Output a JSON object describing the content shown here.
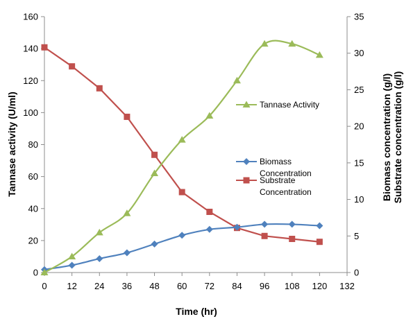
{
  "chart_data": {
    "type": "line",
    "title": "",
    "xlabel": "Time (hr)",
    "ylabel_left": "Tannase activity (U/ml)",
    "ylabel_right": [
      "Biomass concentration (g/l)",
      "Substrate concentration (g/l)"
    ],
    "x_ticks": [
      0,
      12,
      24,
      36,
      48,
      60,
      72,
      84,
      96,
      108,
      120,
      132
    ],
    "xlim": [
      0,
      132
    ],
    "ylim_left": [
      0,
      160
    ],
    "y_ticks_left": [
      0,
      20,
      40,
      60,
      80,
      100,
      120,
      140,
      160
    ],
    "ylim_right": [
      0,
      35
    ],
    "y_ticks_right": [
      0,
      5,
      10,
      15,
      20,
      25,
      30,
      35
    ],
    "grid": false,
    "legend_position": "right",
    "x": [
      0,
      12,
      24,
      36,
      48,
      60,
      72,
      84,
      96,
      108,
      120
    ],
    "series": [
      {
        "name": "Tannase Activity",
        "axis": "left",
        "marker": "triangle",
        "color": "#9BBB59",
        "smooth": true,
        "values": [
          0,
          10,
          25,
          37,
          62,
          83,
          98,
          120,
          143,
          143,
          136
        ]
      },
      {
        "name": "Biomass Concentration",
        "axis": "right",
        "marker": "diamond",
        "color": "#4F81BD",
        "smooth": true,
        "values": [
          0.4,
          1.0,
          1.9,
          2.7,
          3.9,
          5.1,
          5.9,
          6.2,
          6.6,
          6.6,
          6.4
        ]
      },
      {
        "name": "Substrate Concentration",
        "axis": "right",
        "marker": "square",
        "color": "#C0504D",
        "smooth": false,
        "values": [
          30.8,
          28.2,
          25.2,
          21.3,
          16.1,
          11.0,
          8.3,
          6.1,
          5.0,
          4.6,
          4.2
        ]
      }
    ]
  }
}
